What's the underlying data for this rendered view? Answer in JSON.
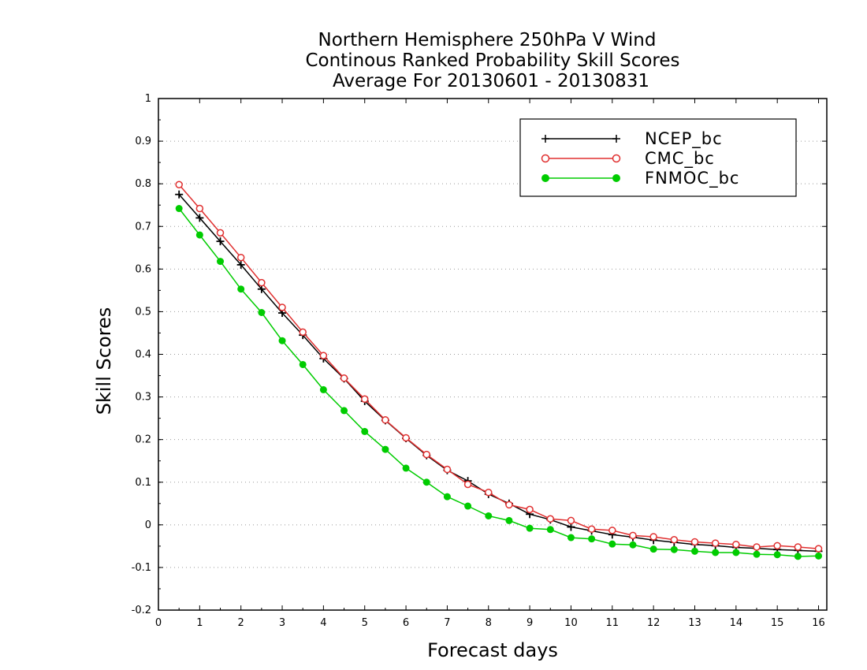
{
  "chart_data": {
    "type": "line",
    "title": [
      "Northern Hemisphere 250hPa V Wind",
      "Continous Ranked Probability Skill Scores",
      "Average For 20130601 - 20130831"
    ],
    "xlabel": "Forecast days",
    "ylabel": "Skill Scores",
    "xlim": [
      0,
      16.2
    ],
    "ylim": [
      -0.2,
      1
    ],
    "xticks": [
      0,
      1,
      2,
      3,
      4,
      5,
      6,
      7,
      8,
      9,
      10,
      11,
      12,
      13,
      14,
      15,
      16
    ],
    "yticks": [
      -0.2,
      -0.1,
      0,
      0.1,
      0.2,
      0.3,
      0.4,
      0.5,
      0.6,
      0.7,
      0.8,
      0.9,
      1
    ],
    "ytick_labels": [
      "-0.2",
      "-0.1",
      "0",
      "0.1",
      "0.2",
      "0.3",
      "0.4",
      "0.5",
      "0.6",
      "0.7",
      "0.8",
      "0.9",
      "1"
    ],
    "grid": "horizontal-dotted",
    "legend_position": "top-right",
    "x": [
      0.5,
      1,
      1.5,
      2,
      2.5,
      3,
      3.5,
      4,
      4.5,
      5,
      5.5,
      6,
      6.5,
      7,
      7.5,
      8,
      8.5,
      9,
      9.5,
      10,
      10.5,
      11,
      11.5,
      12,
      12.5,
      13,
      13.5,
      14,
      14.5,
      15,
      15.5,
      16
    ],
    "series": [
      {
        "name": "NCEP_bc",
        "color": "#000000",
        "marker": "plus",
        "values": [
          0.775,
          0.72,
          0.665,
          0.61,
          0.553,
          0.497,
          0.445,
          0.39,
          0.343,
          0.29,
          0.245,
          0.203,
          0.163,
          0.128,
          0.103,
          0.072,
          0.05,
          0.025,
          0.012,
          -0.005,
          -0.014,
          -0.023,
          -0.029,
          -0.036,
          -0.041,
          -0.046,
          -0.049,
          -0.053,
          -0.055,
          -0.058,
          -0.06,
          -0.062
        ]
      },
      {
        "name": "CMC_bc",
        "color": "#e03030",
        "marker": "open-circle",
        "values": [
          0.798,
          0.742,
          0.685,
          0.627,
          0.568,
          0.51,
          0.452,
          0.397,
          0.344,
          0.295,
          0.246,
          0.204,
          0.165,
          0.13,
          0.095,
          0.076,
          0.047,
          0.036,
          0.014,
          0.01,
          -0.01,
          -0.013,
          -0.025,
          -0.028,
          -0.035,
          -0.04,
          -0.043,
          -0.046,
          -0.052,
          -0.049,
          -0.052,
          -0.056
        ]
      },
      {
        "name": "FNMOC_bc",
        "color": "#00cc00",
        "marker": "filled-circle",
        "values": [
          0.742,
          0.68,
          0.618,
          0.553,
          0.498,
          0.432,
          0.376,
          0.317,
          0.268,
          0.219,
          0.177,
          0.133,
          0.1,
          0.066,
          0.044,
          0.021,
          0.01,
          -0.008,
          -0.011,
          -0.03,
          -0.033,
          -0.045,
          -0.047,
          -0.057,
          -0.058,
          -0.062,
          -0.065,
          -0.065,
          -0.069,
          -0.07,
          -0.074,
          -0.073
        ]
      }
    ]
  }
}
